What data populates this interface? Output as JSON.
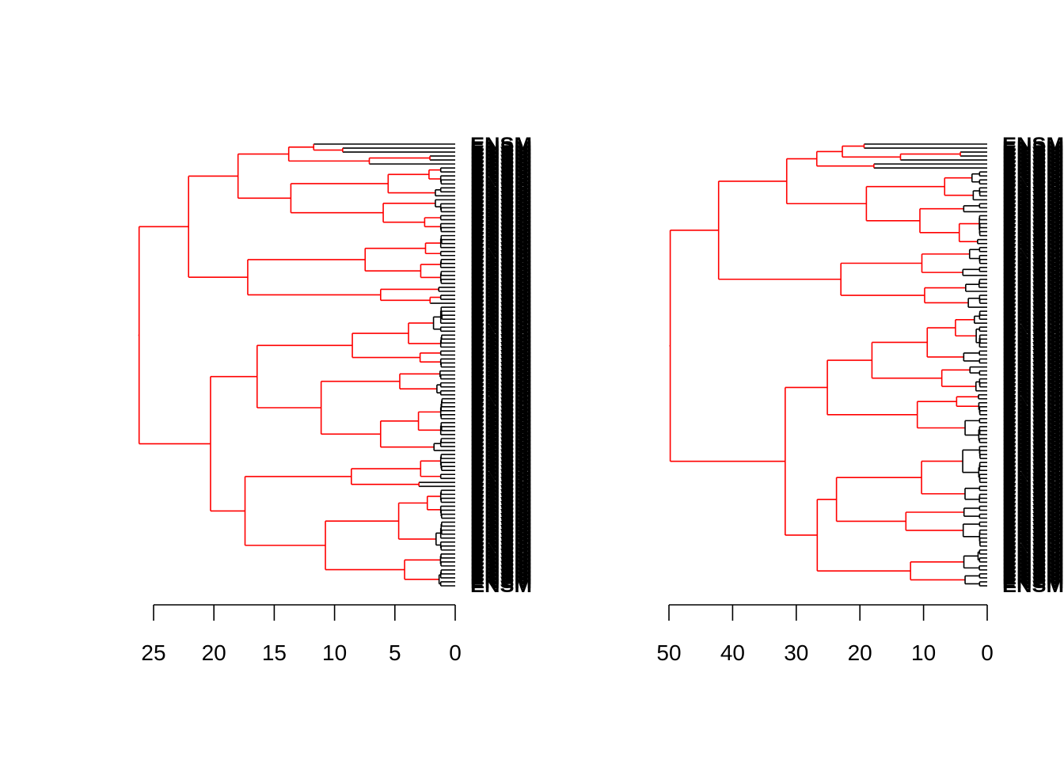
{
  "chart_data": [
    {
      "type": "dendrogram",
      "orientation": "horizontal",
      "leaf_count": 112,
      "leaf_label_prefix": "ENSM",
      "root_height": 26.2,
      "xlim": [
        25,
        0
      ],
      "ticks": [
        25,
        20,
        15,
        10,
        5,
        0
      ],
      "tick_labels": [
        "25",
        "20",
        "15",
        "10",
        "5",
        "0"
      ],
      "branch_colors": {
        "highlighted": "#ff0000",
        "default": "#000000"
      },
      "top_merge_heights": [
        26.2,
        22.1,
        18.0,
        13.8,
        13.4,
        11.7
      ],
      "xlabel": "",
      "ylabel": "",
      "title": ""
    },
    {
      "type": "dendrogram",
      "orientation": "horizontal",
      "leaf_count": 112,
      "leaf_label_prefix": "ENSM",
      "root_height": 49.8,
      "xlim": [
        50,
        0
      ],
      "ticks": [
        50,
        40,
        30,
        20,
        10,
        0
      ],
      "tick_labels": [
        "50",
        "40",
        "30",
        "20",
        "10",
        "0"
      ],
      "branch_colors": {
        "highlighted": "#ff0000",
        "default": "#000000"
      },
      "top_merge_heights": [
        49.8,
        42.2,
        31.5,
        29.2,
        25.3,
        21.9
      ],
      "xlabel": "",
      "ylabel": "",
      "title": ""
    }
  ]
}
